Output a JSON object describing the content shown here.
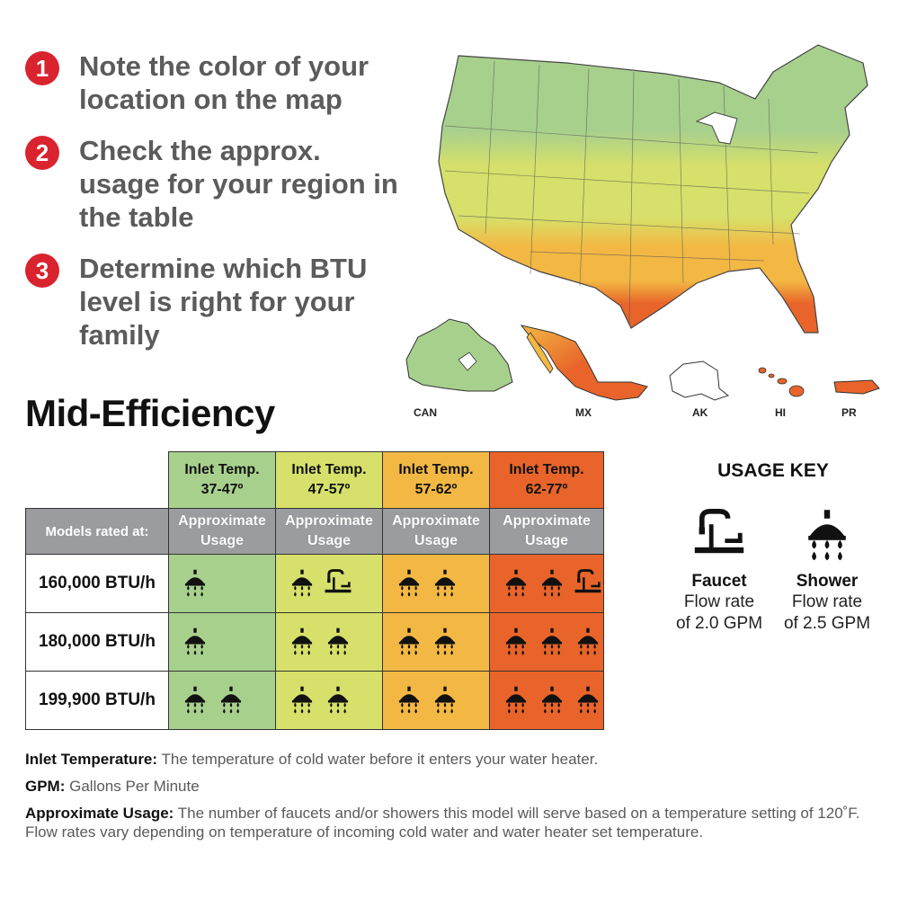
{
  "steps": [
    {
      "number": "1",
      "text": "Note the color of your location on the map"
    },
    {
      "number": "2",
      "text": "Check the approx. usage for your region in the table"
    },
    {
      "number": "3",
      "text": "Determine which BTU level is right for your family"
    }
  ],
  "map": {
    "labels": {
      "can": "CAN",
      "mx": "MX",
      "ak": "AK",
      "hi": "HI",
      "pr": "PR"
    }
  },
  "heading": "Mid-Efficiency",
  "table": {
    "models_label": "Models rated at:",
    "columns": [
      {
        "temp_line1": "Inlet Temp.",
        "temp_line2": "37-47º",
        "usage_line1": "Approximate",
        "usage_line2": "Usage",
        "color": "#a8d08d"
      },
      {
        "temp_line1": "Inlet Temp.",
        "temp_line2": "47-57º",
        "usage_line1": "Approximate",
        "usage_line2": "Usage",
        "color": "#d6e06a"
      },
      {
        "temp_line1": "Inlet Temp.",
        "temp_line2": "57-62º",
        "usage_line1": "Approximate",
        "usage_line2": "Usage",
        "color": "#f3b843"
      },
      {
        "temp_line1": "Inlet Temp.",
        "temp_line2": "62-77º",
        "usage_line1": "Approximate",
        "usage_line2": "Usage",
        "color": "#e8642a"
      }
    ],
    "rows": [
      {
        "label": "160,000 BTU/h",
        "cells": [
          {
            "showers": 1,
            "faucets": 0
          },
          {
            "showers": 1,
            "faucets": 1
          },
          {
            "showers": 2,
            "faucets": 0
          },
          {
            "showers": 2,
            "faucets": 1
          }
        ]
      },
      {
        "label": "180,000 BTU/h",
        "cells": [
          {
            "showers": 1,
            "faucets": 0
          },
          {
            "showers": 2,
            "faucets": 0
          },
          {
            "showers": 2,
            "faucets": 0
          },
          {
            "showers": 3,
            "faucets": 0
          }
        ]
      },
      {
        "label": "199,900 BTU/h",
        "cells": [
          {
            "showers": 2,
            "faucets": 0
          },
          {
            "showers": 2,
            "faucets": 0
          },
          {
            "showers": 2,
            "faucets": 0
          },
          {
            "showers": 3,
            "faucets": 0
          }
        ]
      }
    ]
  },
  "usage_key": {
    "title": "USAGE KEY",
    "faucet": {
      "name": "Faucet",
      "line1": "Flow rate",
      "line2": "of 2.0 GPM",
      "icon": "faucet-icon"
    },
    "shower": {
      "name": "Shower",
      "line1": "Flow rate",
      "line2": "of 2.5 GPM",
      "icon": "shower-icon"
    }
  },
  "notes": [
    {
      "term": "Inlet Temperature:",
      "text": " The temperature of cold water before it enters your water heater."
    },
    {
      "term": "GPM:",
      "text": " Gallons Per Minute"
    },
    {
      "term": "Approximate Usage:",
      "text": " The number of faucets and/or showers this model will serve based on a temperature setting of 120˚F. Flow rates vary depending on temperature of incoming cold water and water heater set temperature."
    }
  ]
}
